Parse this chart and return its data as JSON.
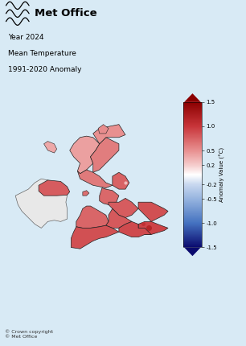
{
  "title_lines": [
    "Year 2024",
    "Mean Temperature",
    "1991-2020 Anomaly"
  ],
  "met_office_label": "Met Office",
  "copyright_text": "© Crown copyright\n© Met Office",
  "colorbar_ticks": [
    1.5,
    1.0,
    0.5,
    0.2,
    -0.2,
    -0.5,
    -1.0,
    -1.5
  ],
  "colorbar_label": "Anomaly Value (°C)",
  "vmin": -1.5,
  "vmax": 1.5,
  "background_color": "#d8eaf5",
  "fig_width": 3.06,
  "fig_height": 4.3,
  "dpi": 100,
  "colorbar_colors": [
    [
      1.5,
      "#8b0000"
    ],
    [
      1.0,
      "#c8353a"
    ],
    [
      0.5,
      "#e89090"
    ],
    [
      0.2,
      "#f5cccc"
    ],
    [
      0.0,
      "#ffffff"
    ],
    [
      -0.2,
      "#c8d8ef"
    ],
    [
      -0.5,
      "#96b4df"
    ],
    [
      -1.0,
      "#4472c0"
    ],
    [
      -1.5,
      "#0a0a6e"
    ]
  ],
  "colorbar_arrow_top": "#8b0000",
  "colorbar_arrow_bot": "#0a0a6e"
}
